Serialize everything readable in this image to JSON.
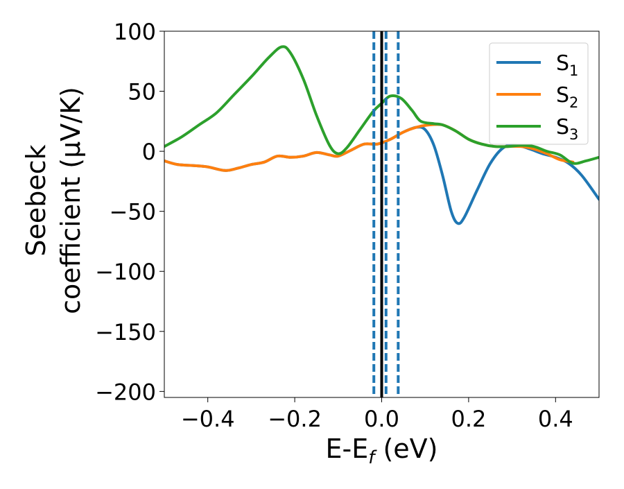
{
  "chart_data": {
    "type": "line",
    "xlabel": "E-E",
    "xlabel_sub": "f",
    "xlabel_unit": " (eV)",
    "ylabel_line1": "Seebeck",
    "ylabel_line2": "coefficient  (μV/K)",
    "xlim": [
      -0.5,
      0.5
    ],
    "ylim": [
      -205,
      100
    ],
    "xticks": [
      -0.4,
      -0.2,
      0.0,
      0.2,
      0.4
    ],
    "xtick_labels": [
      "−0.4",
      "−0.2",
      "0.0",
      "0.2",
      "0.4"
    ],
    "yticks": [
      100,
      50,
      0,
      -50,
      -100,
      -150,
      -200
    ],
    "ytick_labels": [
      "100",
      "50",
      "0",
      "−50",
      "−100",
      "−150",
      "−200"
    ],
    "grid": false,
    "legend_position": "top-right",
    "vlines": [
      {
        "x": 0.0,
        "style": "solid",
        "color": "#000000"
      },
      {
        "x": -0.018,
        "style": "dashed",
        "color": "#1f77b4"
      },
      {
        "x": 0.01,
        "style": "dashed",
        "color": "#1f77b4"
      },
      {
        "x": 0.038,
        "style": "dashed",
        "color": "#1f77b4"
      }
    ],
    "series": [
      {
        "name": "S",
        "sub": "1",
        "color": "#1f77b4",
        "points": [
          [
            -0.5,
            -8
          ],
          [
            -0.47,
            -11
          ],
          [
            -0.43,
            -12
          ],
          [
            -0.4,
            -13
          ],
          [
            -0.36,
            -16
          ],
          [
            -0.33,
            -14
          ],
          [
            -0.3,
            -11
          ],
          [
            -0.27,
            -9
          ],
          [
            -0.24,
            -4
          ],
          [
            -0.21,
            -5
          ],
          [
            -0.18,
            -4
          ],
          [
            -0.15,
            -1
          ],
          [
            -0.12,
            -3
          ],
          [
            -0.1,
            -4
          ],
          [
            -0.07,
            1
          ],
          [
            -0.04,
            6
          ],
          [
            -0.01,
            6
          ],
          [
            0.02,
            10
          ],
          [
            0.05,
            16
          ],
          [
            0.08,
            20
          ],
          [
            0.1,
            18
          ],
          [
            0.12,
            5
          ],
          [
            0.14,
            -20
          ],
          [
            0.16,
            -50
          ],
          [
            0.175,
            -60
          ],
          [
            0.19,
            -55
          ],
          [
            0.22,
            -32
          ],
          [
            0.25,
            -10
          ],
          [
            0.28,
            3
          ],
          [
            0.31,
            5
          ],
          [
            0.34,
            2
          ],
          [
            0.37,
            -2
          ],
          [
            0.4,
            -5
          ],
          [
            0.43,
            -10
          ],
          [
            0.46,
            -20
          ],
          [
            0.5,
            -40
          ]
        ]
      },
      {
        "name": "S",
        "sub": "2",
        "color": "#ff7f0e",
        "points": [
          [
            -0.5,
            -8
          ],
          [
            -0.47,
            -11
          ],
          [
            -0.43,
            -12
          ],
          [
            -0.4,
            -13
          ],
          [
            -0.36,
            -16
          ],
          [
            -0.33,
            -14
          ],
          [
            -0.3,
            -11
          ],
          [
            -0.27,
            -9
          ],
          [
            -0.24,
            -4
          ],
          [
            -0.21,
            -5
          ],
          [
            -0.18,
            -4
          ],
          [
            -0.15,
            -1
          ],
          [
            -0.12,
            -3
          ],
          [
            -0.1,
            -4
          ],
          [
            -0.07,
            1
          ],
          [
            -0.04,
            6
          ],
          [
            -0.01,
            6
          ],
          [
            0.02,
            10
          ],
          [
            0.05,
            16
          ],
          [
            0.08,
            20
          ],
          [
            0.11,
            22
          ],
          [
            0.14,
            22
          ],
          [
            0.17,
            17
          ],
          [
            0.2,
            10
          ],
          [
            0.23,
            6
          ],
          [
            0.26,
            4
          ],
          [
            0.29,
            4
          ],
          [
            0.32,
            4
          ],
          [
            0.35,
            2
          ],
          [
            0.38,
            -2
          ],
          [
            0.41,
            -7
          ],
          [
            0.44,
            -9
          ]
        ]
      },
      {
        "name": "S",
        "sub": "3",
        "color": "#2ca02c",
        "points": [
          [
            -0.5,
            4
          ],
          [
            -0.46,
            12
          ],
          [
            -0.42,
            22
          ],
          [
            -0.38,
            32
          ],
          [
            -0.34,
            47
          ],
          [
            -0.3,
            62
          ],
          [
            -0.26,
            78
          ],
          [
            -0.23,
            87
          ],
          [
            -0.21,
            82
          ],
          [
            -0.18,
            60
          ],
          [
            -0.15,
            30
          ],
          [
            -0.12,
            5
          ],
          [
            -0.1,
            -2
          ],
          [
            -0.08,
            3
          ],
          [
            -0.05,
            18
          ],
          [
            -0.02,
            33
          ],
          [
            0.0,
            40
          ],
          [
            0.02,
            46
          ],
          [
            0.045,
            44
          ],
          [
            0.07,
            34
          ],
          [
            0.09,
            25
          ],
          [
            0.12,
            23
          ],
          [
            0.14,
            22
          ],
          [
            0.17,
            17
          ],
          [
            0.2,
            10
          ],
          [
            0.23,
            6
          ],
          [
            0.26,
            4
          ],
          [
            0.29,
            4
          ],
          [
            0.32,
            5
          ],
          [
            0.35,
            4
          ],
          [
            0.38,
            0
          ],
          [
            0.41,
            -3
          ],
          [
            0.44,
            -10
          ],
          [
            0.47,
            -8
          ],
          [
            0.5,
            -5
          ]
        ]
      }
    ]
  }
}
